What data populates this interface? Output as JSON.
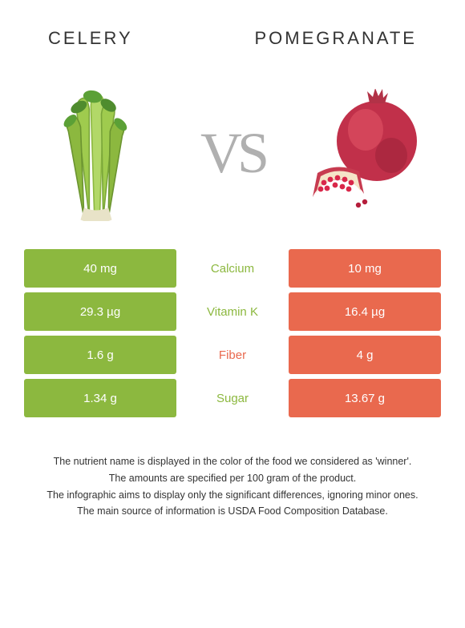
{
  "food_left": {
    "name": "CELERY",
    "color": "#8CB83F"
  },
  "food_right": {
    "name": "POMEGRANATE",
    "color": "#E9694E"
  },
  "vs_label": "VS",
  "rows": [
    {
      "left": "40 mg",
      "label": "Calcium",
      "right": "10 mg",
      "winner": "left"
    },
    {
      "left": "29.3 µg",
      "label": "Vitamin K",
      "right": "16.4 µg",
      "winner": "left"
    },
    {
      "left": "1.6 g",
      "label": "Fiber",
      "right": "4 g",
      "winner": "right"
    },
    {
      "left": "1.34 g",
      "label": "Sugar",
      "right": "13.67 g",
      "winner": "left"
    }
  ],
  "footer": {
    "line1": "The nutrient name is displayed in the color of the food we considered as 'winner'.",
    "line2": "The amounts are specified per 100 gram of the product.",
    "line3": "The infographic aims to display only the significant differences, ignoring minor ones.",
    "line4": "The main source of information is USDA Food Composition Database."
  },
  "colors": {
    "left": "#8CB83F",
    "right": "#E9694E",
    "background": "#ffffff",
    "text": "#333333"
  },
  "title_fontsize": 22,
  "cell_fontsize": 15,
  "footer_fontsize": 12.5
}
